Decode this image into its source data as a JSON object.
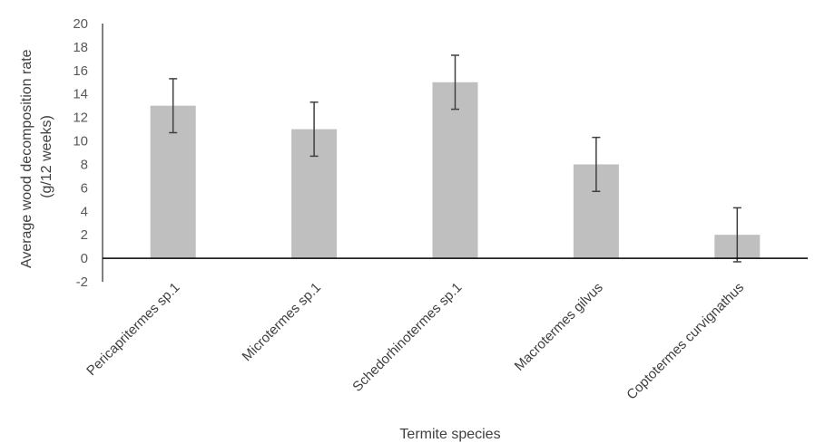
{
  "chart_data": {
    "type": "bar",
    "title": "",
    "xlabel": "Termite species",
    "ylabel_lines": [
      "Average wood decomposition rate",
      "(g/12 weeks)"
    ],
    "categories": [
      "Pericapritermes sp.1",
      "Microtermes sp.1",
      "Schedorhinotermes sp.1",
      "Macrotermes gilvus",
      "Coptotermes curvignathus"
    ],
    "series": [
      {
        "values": [
          13,
          11,
          15,
          8,
          2
        ],
        "error": [
          2.3,
          2.3,
          2.3,
          2.3,
          2.3
        ]
      }
    ],
    "ylim": [
      -2,
      20
    ],
    "yticks": [
      -2,
      0,
      2,
      4,
      6,
      8,
      10,
      12,
      14,
      16,
      18,
      20
    ],
    "grid": false,
    "legend": "none",
    "colors": {
      "bar": "#bfbfbf",
      "error_bar": "#404040",
      "axis": "#000000",
      "text": "#404040"
    }
  }
}
